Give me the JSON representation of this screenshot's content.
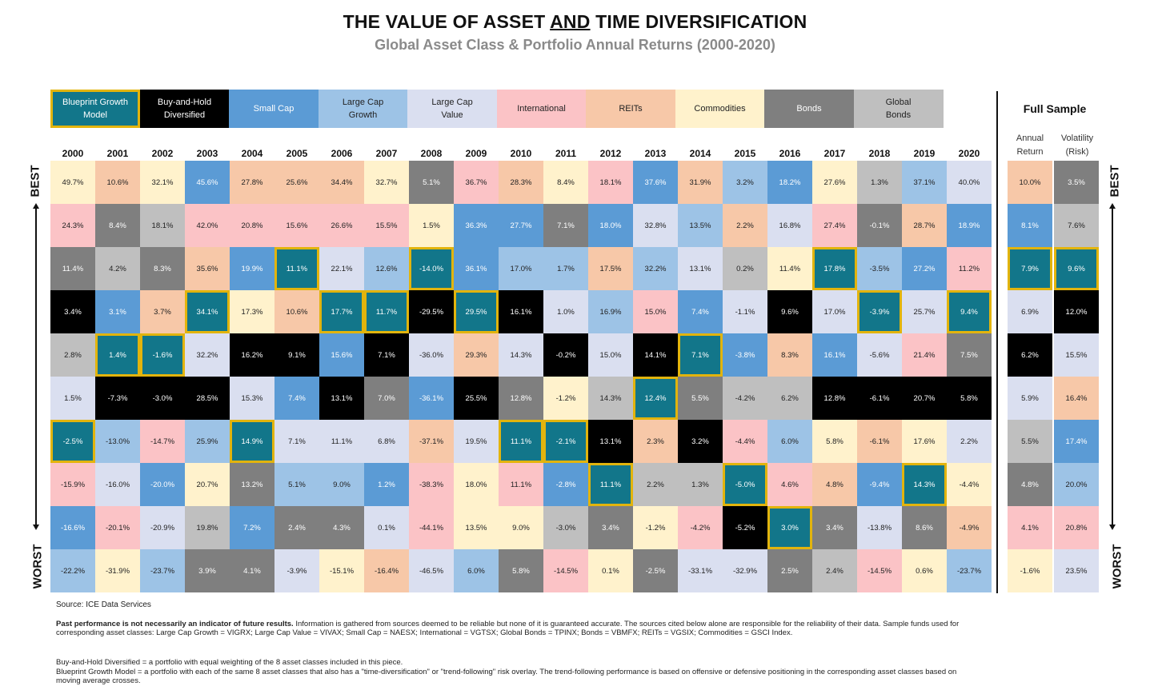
{
  "header": {
    "title_part1": "THE VALUE OF ASSET ",
    "title_part2": "AND",
    "title_part3": " TIME DIVERSIFICATION",
    "subtitle": "Global Asset Class & Portfolio Annual Returns (2000-2020)"
  },
  "legend": [
    {
      "key": "bp",
      "line1": "Blueprint Growth",
      "line2": "Model",
      "bg": "#12768a",
      "fg": "#ffffff",
      "highlight": true
    },
    {
      "key": "bh",
      "line1": "Buy-and-Hold",
      "line2": "Diversified",
      "bg": "#000000",
      "fg": "#ffffff",
      "highlight": false
    },
    {
      "key": "sc",
      "line1": "Small Cap",
      "line2": "",
      "bg": "#5b9bd5",
      "fg": "#ffffff",
      "highlight": false
    },
    {
      "key": "lg",
      "line1": "Large Cap",
      "line2": "Growth",
      "bg": "#9dc3e6",
      "fg": "#222222",
      "highlight": false
    },
    {
      "key": "lv",
      "line1": "Large Cap",
      "line2": "Value",
      "bg": "#dadff0",
      "fg": "#222222",
      "highlight": false
    },
    {
      "key": "in",
      "line1": "International",
      "line2": "",
      "bg": "#fbc3c6",
      "fg": "#222222",
      "highlight": false
    },
    {
      "key": "re",
      "line1": "REITs",
      "line2": "",
      "bg": "#f7c8a8",
      "fg": "#222222",
      "highlight": false
    },
    {
      "key": "co",
      "line1": "Commodities",
      "line2": "",
      "bg": "#fff2cc",
      "fg": "#222222",
      "highlight": false
    },
    {
      "key": "bo",
      "line1": "Bonds",
      "line2": "",
      "bg": "#7f7f7f",
      "fg": "#ffffff",
      "highlight": false
    },
    {
      "key": "gb",
      "line1": "Global",
      "line2": "Bonds",
      "bg": "#bfbfbf",
      "fg": "#222222",
      "highlight": false
    }
  ],
  "full_sample": {
    "title": "Full Sample",
    "col1_line1": "Annual",
    "col1_line2": "Return",
    "col2_line1": "Volatility",
    "col2_line2": "(Risk)"
  },
  "side_labels": {
    "best": "BEST",
    "worst": "WORST"
  },
  "chart_data": {
    "type": "table",
    "title": "THE VALUE OF ASSET AND TIME DIVERSIFICATION",
    "subtitle": "Global Asset Class & Portfolio Annual Returns (2000-2020)",
    "years": [
      "2000",
      "2001",
      "2002",
      "2003",
      "2004",
      "2005",
      "2006",
      "2007",
      "2008",
      "2009",
      "2010",
      "2011",
      "2012",
      "2013",
      "2014",
      "2015",
      "2016",
      "2017",
      "2018",
      "2019",
      "2020"
    ],
    "columns": [
      [
        [
          "co",
          "49.7%"
        ],
        [
          "in",
          "24.3%"
        ],
        [
          "bo",
          "11.4%"
        ],
        [
          "bh",
          "3.4%"
        ],
        [
          "gb",
          "2.8%"
        ],
        [
          "lv",
          "1.5%"
        ],
        [
          "bp",
          "-2.5%"
        ],
        [
          "in",
          "-15.9%"
        ],
        [
          "sc",
          "-16.6%"
        ],
        [
          "lg",
          "-22.2%"
        ]
      ],
      [
        [
          "re",
          "10.6%"
        ],
        [
          "bo",
          "8.4%"
        ],
        [
          "gb",
          "4.2%"
        ],
        [
          "sc",
          "3.1%"
        ],
        [
          "bp",
          "1.4%"
        ],
        [
          "bh",
          "-7.3%"
        ],
        [
          "lg",
          "-13.0%"
        ],
        [
          "lv",
          "-16.0%"
        ],
        [
          "in",
          "-20.1%"
        ],
        [
          "co",
          "-31.9%"
        ]
      ],
      [
        [
          "co",
          "32.1%"
        ],
        [
          "gb",
          "18.1%"
        ],
        [
          "bo",
          "8.3%"
        ],
        [
          "re",
          "3.7%"
        ],
        [
          "bp",
          "-1.6%"
        ],
        [
          "bh",
          "-3.0%"
        ],
        [
          "in",
          "-14.7%"
        ],
        [
          "sc",
          "-20.0%"
        ],
        [
          "lv",
          "-20.9%"
        ],
        [
          "lg",
          "-23.7%"
        ]
      ],
      [
        [
          "sc",
          "45.6%"
        ],
        [
          "in",
          "42.0%"
        ],
        [
          "re",
          "35.6%"
        ],
        [
          "bp",
          "34.1%"
        ],
        [
          "lv",
          "32.2%"
        ],
        [
          "bh",
          "28.5%"
        ],
        [
          "lg",
          "25.9%"
        ],
        [
          "co",
          "20.7%"
        ],
        [
          "gb",
          "19.8%"
        ],
        [
          "bo",
          "3.9%"
        ]
      ],
      [
        [
          "re",
          "27.8%"
        ],
        [
          "in",
          "20.8%"
        ],
        [
          "sc",
          "19.9%"
        ],
        [
          "co",
          "17.3%"
        ],
        [
          "bh",
          "16.2%"
        ],
        [
          "lv",
          "15.3%"
        ],
        [
          "bp",
          "14.9%"
        ],
        [
          "bo",
          "13.2%"
        ],
        [
          "sc",
          "7.2%"
        ],
        [
          "bo",
          "4.1%"
        ]
      ],
      [
        [
          "re",
          "25.6%"
        ],
        [
          "in",
          "15.6%"
        ],
        [
          "bp",
          "11.1%"
        ],
        [
          "re",
          "10.6%"
        ],
        [
          "bh",
          "9.1%"
        ],
        [
          "sc",
          "7.4%"
        ],
        [
          "lv",
          "7.1%"
        ],
        [
          "lg",
          "5.1%"
        ],
        [
          "bo",
          "2.4%"
        ],
        [
          "lv",
          "-3.9%"
        ]
      ],
      [
        [
          "re",
          "34.4%"
        ],
        [
          "in",
          "26.6%"
        ],
        [
          "lv",
          "22.1%"
        ],
        [
          "bp",
          "17.7%"
        ],
        [
          "sc",
          "15.6%"
        ],
        [
          "bh",
          "13.1%"
        ],
        [
          "lv",
          "11.1%"
        ],
        [
          "lg",
          "9.0%"
        ],
        [
          "bo",
          "4.3%"
        ],
        [
          "co",
          "-15.1%"
        ]
      ],
      [
        [
          "co",
          "32.7%"
        ],
        [
          "in",
          "15.5%"
        ],
        [
          "lg",
          "12.6%"
        ],
        [
          "bp",
          "11.7%"
        ],
        [
          "bh",
          "7.1%"
        ],
        [
          "bo",
          "7.0%"
        ],
        [
          "lv",
          "6.8%"
        ],
        [
          "sc",
          "1.2%"
        ],
        [
          "lv",
          "0.1%"
        ],
        [
          "re",
          "-16.4%"
        ]
      ],
      [
        [
          "bo",
          "5.1%"
        ],
        [
          "co",
          "1.5%"
        ],
        [
          "bp",
          "-14.0%"
        ],
        [
          "bh",
          "-29.5%"
        ],
        [
          "lv",
          "-36.0%"
        ],
        [
          "sc",
          "-36.1%"
        ],
        [
          "re",
          "-37.1%"
        ],
        [
          "in",
          "-38.3%"
        ],
        [
          "in",
          "-44.1%"
        ],
        [
          "lv",
          "-46.5%"
        ]
      ],
      [
        [
          "in",
          "36.7%"
        ],
        [
          "sc",
          "36.3%"
        ],
        [
          "sc",
          "36.1%"
        ],
        [
          "bp",
          "29.5%"
        ],
        [
          "re",
          "29.3%"
        ],
        [
          "bh",
          "25.5%"
        ],
        [
          "lv",
          "19.5%"
        ],
        [
          "co",
          "18.0%"
        ],
        [
          "co",
          "13.5%"
        ],
        [
          "lg",
          "6.0%"
        ]
      ],
      [
        [
          "re",
          "28.3%"
        ],
        [
          "sc",
          "27.7%"
        ],
        [
          "lg",
          "17.0%"
        ],
        [
          "bh",
          "16.1%"
        ],
        [
          "lv",
          "14.3%"
        ],
        [
          "bo",
          "12.8%"
        ],
        [
          "bp",
          "11.1%"
        ],
        [
          "in",
          "11.1%"
        ],
        [
          "co",
          "9.0%"
        ],
        [
          "bo",
          "5.8%"
        ]
      ],
      [
        [
          "co",
          "8.4%"
        ],
        [
          "bo",
          "7.1%"
        ],
        [
          "lg",
          "1.7%"
        ],
        [
          "lv",
          "1.0%"
        ],
        [
          "bh",
          "-0.2%"
        ],
        [
          "co",
          "-1.2%"
        ],
        [
          "bp",
          "-2.1%"
        ],
        [
          "sc",
          "-2.8%"
        ],
        [
          "gb",
          "-3.0%"
        ],
        [
          "in",
          "-14.5%"
        ]
      ],
      [
        [
          "in",
          "18.1%"
        ],
        [
          "sc",
          "18.0%"
        ],
        [
          "re",
          "17.5%"
        ],
        [
          "lg",
          "16.9%"
        ],
        [
          "lv",
          "15.0%"
        ],
        [
          "gb",
          "14.3%"
        ],
        [
          "bh",
          "13.1%"
        ],
        [
          "bp",
          "11.1%"
        ],
        [
          "bo",
          "3.4%"
        ],
        [
          "co",
          "0.1%"
        ]
      ],
      [
        [
          "sc",
          "37.6%"
        ],
        [
          "lv",
          "32.8%"
        ],
        [
          "lg",
          "32.2%"
        ],
        [
          "in",
          "15.0%"
        ],
        [
          "bh",
          "14.1%"
        ],
        [
          "bp",
          "12.4%"
        ],
        [
          "re",
          "2.3%"
        ],
        [
          "gb",
          "2.2%"
        ],
        [
          "co",
          "-1.2%"
        ],
        [
          "bo",
          "-2.5%"
        ]
      ],
      [
        [
          "re",
          "31.9%"
        ],
        [
          "lg",
          "13.5%"
        ],
        [
          "lv",
          "13.1%"
        ],
        [
          "sc",
          "7.4%"
        ],
        [
          "bp",
          "7.1%"
        ],
        [
          "bo",
          "5.5%"
        ],
        [
          "bh",
          "3.2%"
        ],
        [
          "gb",
          "1.3%"
        ],
        [
          "in",
          "-4.2%"
        ],
        [
          "lv",
          "-33.1%"
        ]
      ],
      [
        [
          "lg",
          "3.2%"
        ],
        [
          "re",
          "2.2%"
        ],
        [
          "gb",
          "0.2%"
        ],
        [
          "lv",
          "-1.1%"
        ],
        [
          "sc",
          "-3.8%"
        ],
        [
          "gb",
          "-4.2%"
        ],
        [
          "in",
          "-4.4%"
        ],
        [
          "bp",
          "-5.0%"
        ],
        [
          "bh",
          "-5.2%"
        ],
        [
          "lv",
          "-32.9%"
        ]
      ],
      [
        [
          "sc",
          "18.2%"
        ],
        [
          "lv",
          "16.8%"
        ],
        [
          "co",
          "11.4%"
        ],
        [
          "bh",
          "9.6%"
        ],
        [
          "re",
          "8.3%"
        ],
        [
          "gb",
          "6.2%"
        ],
        [
          "lg",
          "6.0%"
        ],
        [
          "in",
          "4.6%"
        ],
        [
          "bp",
          "3.0%"
        ],
        [
          "bo",
          "2.5%"
        ]
      ],
      [
        [
          "co",
          "27.6%"
        ],
        [
          "in",
          "27.4%"
        ],
        [
          "bp",
          "17.8%"
        ],
        [
          "lv",
          "17.0%"
        ],
        [
          "sc",
          "16.1%"
        ],
        [
          "bh",
          "12.8%"
        ],
        [
          "co",
          "5.8%"
        ],
        [
          "re",
          "4.8%"
        ],
        [
          "bo",
          "3.4%"
        ],
        [
          "gb",
          "2.4%"
        ]
      ],
      [
        [
          "gb",
          "1.3%"
        ],
        [
          "bo",
          "-0.1%"
        ],
        [
          "lg",
          "-3.5%"
        ],
        [
          "bp",
          "-3.9%"
        ],
        [
          "lv",
          "-5.6%"
        ],
        [
          "bh",
          "-6.1%"
        ],
        [
          "re",
          "-6.1%"
        ],
        [
          "sc",
          "-9.4%"
        ],
        [
          "lv",
          "-13.8%"
        ],
        [
          "in",
          "-14.5%"
        ]
      ],
      [
        [
          "lg",
          "37.1%"
        ],
        [
          "re",
          "28.7%"
        ],
        [
          "sc",
          "27.2%"
        ],
        [
          "lv",
          "25.7%"
        ],
        [
          "in",
          "21.4%"
        ],
        [
          "bh",
          "20.7%"
        ],
        [
          "co",
          "17.6%"
        ],
        [
          "bp",
          "14.3%"
        ],
        [
          "bo",
          "8.6%"
        ],
        [
          "co",
          "0.6%"
        ]
      ],
      [
        [
          "lv",
          "40.0%"
        ],
        [
          "sc",
          "18.9%"
        ],
        [
          "in",
          "11.2%"
        ],
        [
          "bp",
          "9.4%"
        ],
        [
          "bo",
          "7.5%"
        ],
        [
          "bh",
          "5.8%"
        ],
        [
          "lv",
          "2.2%"
        ],
        [
          "co",
          "-4.4%"
        ],
        [
          "re",
          "-4.9%"
        ],
        [
          "lg",
          "-23.7%"
        ]
      ]
    ],
    "full_sample_return": [
      [
        "re",
        "10.0%"
      ],
      [
        "sc",
        "8.1%"
      ],
      [
        "bp",
        "7.9%"
      ],
      [
        "lv",
        "6.9%"
      ],
      [
        "bh",
        "6.2%"
      ],
      [
        "lv",
        "5.9%"
      ],
      [
        "gb",
        "5.5%"
      ],
      [
        "bo",
        "4.8%"
      ],
      [
        "in",
        "4.1%"
      ],
      [
        "co",
        "-1.6%"
      ]
    ],
    "full_sample_volatility": [
      [
        "bo",
        "3.5%"
      ],
      [
        "gb",
        "7.6%"
      ],
      [
        "bp",
        "9.6%"
      ],
      [
        "bh",
        "12.0%"
      ],
      [
        "lv",
        "15.5%"
      ],
      [
        "re",
        "16.4%"
      ],
      [
        "sc",
        "17.4%"
      ],
      [
        "lg",
        "20.0%"
      ],
      [
        "in",
        "20.8%"
      ],
      [
        "lv",
        "23.5%"
      ]
    ]
  },
  "footer": {
    "source": "Source: ICE Data Services",
    "disclaimer_bold": "Past performance is not necessarily an indicator of future results.",
    "disclaimer_rest": " Information is gathered from sources deemed to be reliable but none of it is guaranteed accurate. The sources cited below alone are responsible for the reliability of their data. Sample funds used for corresponding asset classes: Large Cap Growth = VIGRX; Large Cap Value = VIVAX; Small Cap = NAESX; International = VGTSX; Global Bonds = TPINX; Bonds = VBMFX; REITs = VGSIX; Commodities = GSCI Index.",
    "note1": "Buy-and-Hold Diversified = a portfolio with equal weighting of the 8 asset classes included in this piece.",
    "note2": "Blueprint Growth Model = a portfolio with each of the same 8 asset classes that also has a \"time-diversification\" or \"trend-following\" risk overlay. The trend-following performance is based on offensive or defensive positioning in the corresponding asset classes based on moving average crosses."
  }
}
